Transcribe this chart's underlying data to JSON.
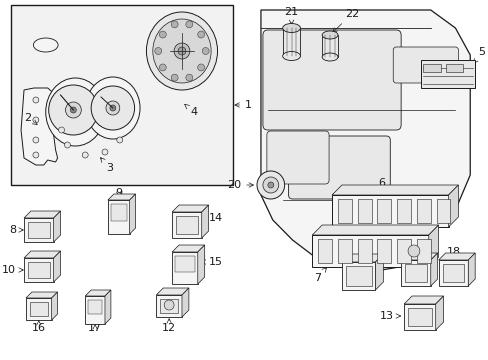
{
  "background_color": "#ffffff",
  "fig_width": 4.89,
  "fig_height": 3.6,
  "dpi": 100,
  "line_color": "#1a1a1a",
  "fill_light": "#f5f5f5",
  "fill_mid": "#e8e8e8",
  "fill_dark": "#d8d8d8"
}
